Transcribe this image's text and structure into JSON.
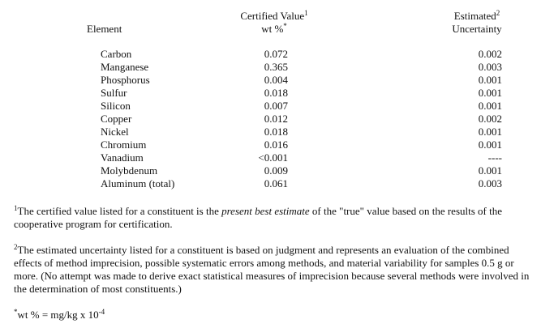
{
  "table": {
    "headers": {
      "element": "Element",
      "certified_line1": "Certified Value",
      "certified_sup": "1",
      "certified_line2": "wt %",
      "certified_line2_sup": "*",
      "uncertainty_line1": "Estimated",
      "uncertainty_sup": "2",
      "uncertainty_line2": "Uncertainty"
    },
    "rows": [
      {
        "element": "Carbon",
        "certified": "0.072",
        "uncertainty": "0.002"
      },
      {
        "element": "Manganese",
        "certified": "0.365",
        "uncertainty": "0.003"
      },
      {
        "element": "Phosphorus",
        "certified": "0.004",
        "uncertainty": "0.001"
      },
      {
        "element": "Sulfur",
        "certified": "0.018",
        "uncertainty": "0.001"
      },
      {
        "element": "Silicon",
        "certified": "0.007",
        "uncertainty": "0.001"
      },
      {
        "element": "Copper",
        "certified": "0.012",
        "uncertainty": "0.002"
      },
      {
        "element": "Nickel",
        "certified": "0.018",
        "uncertainty": "0.001"
      },
      {
        "element": "Chromium",
        "certified": "0.016",
        "uncertainty": "0.001"
      },
      {
        "element": "Vanadium",
        "certified": "<0.001",
        "uncertainty": "----"
      },
      {
        "element": "Molybdenum",
        "certified": "0.009",
        "uncertainty": "0.001"
      },
      {
        "element": "Aluminum (total)",
        "certified": "0.061",
        "uncertainty": "0.003"
      }
    ]
  },
  "footnotes": {
    "fn1": {
      "mark": "1",
      "before": "The certified value listed for a constituent is the ",
      "italic": "present best estimate",
      "after": " of the \"true\" value based on the results of the cooperative program for certification."
    },
    "fn2": {
      "mark": "2",
      "text": "The estimated uncertainty listed for a constituent is based on judgment and represents an evaluation of the combined effects of method imprecision, possible systematic errors among methods, and material variability for samples 0.5 g or more.  (No attempt was made to derive exact statistical measures of imprecision because several methods were involved in the determination of most constituents.)"
    },
    "fn3": {
      "mark": "*",
      "text": "wt %  =  mg/kg x 10",
      "exponent": "-4"
    }
  }
}
